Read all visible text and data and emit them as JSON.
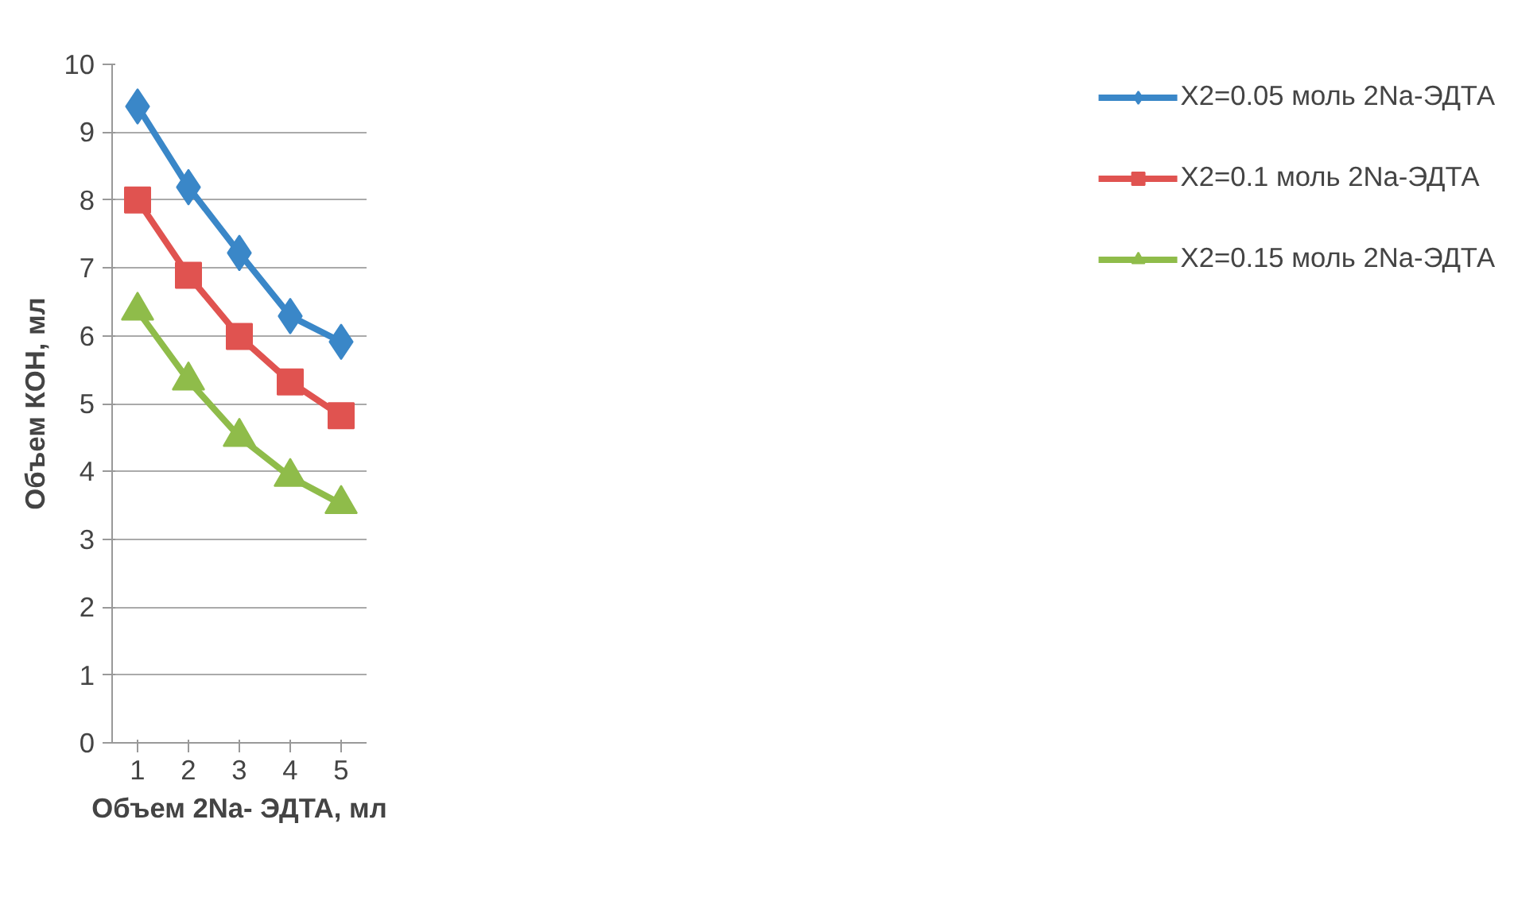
{
  "chart_data": {
    "type": "line",
    "xlabel": "Объем 2Na- ЭДТА, мл",
    "ylabel": "Объем КОН, мл",
    "categories": [
      "1",
      "2",
      "3",
      "4",
      "5"
    ],
    "series": [
      {
        "name": "X2=0.05 моль 2Na-ЭДТА",
        "color": "#3a87c8",
        "marker": "diamond",
        "values": [
          9.38,
          8.19,
          7.22,
          6.29,
          5.91
        ]
      },
      {
        "name": "X2=0.1 моль 2Na-ЭДТА",
        "color": "#e05350",
        "marker": "square",
        "values": [
          8.0,
          6.89,
          5.99,
          5.32,
          4.82
        ]
      },
      {
        "name": "X2=0.15 моль 2Na-ЭДТА",
        "color": "#8fbc4a",
        "marker": "triangle",
        "values": [
          6.37,
          5.34,
          4.51,
          3.92,
          3.52
        ]
      }
    ],
    "ylim": [
      0,
      10
    ],
    "yticks": [
      0,
      1,
      2,
      3,
      4,
      5,
      6,
      7,
      8,
      9,
      10
    ],
    "grid": "y",
    "legend": "right",
    "line_style": "solid"
  }
}
